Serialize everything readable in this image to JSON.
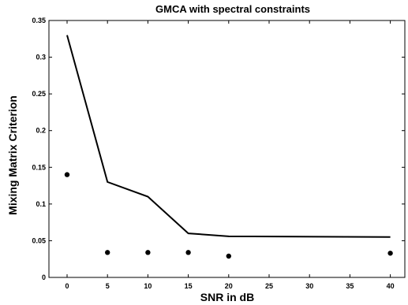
{
  "chart_data": {
    "type": "line",
    "title": "GMCA with spectral constraints",
    "xlabel": "SNR in dB",
    "ylabel": "Mixing Matrix Criterion",
    "categories": [
      "0",
      "5",
      "10",
      "15",
      "20",
      "25",
      "30",
      "35",
      "40"
    ],
    "ylim": [
      0,
      0.35
    ],
    "yticks": [
      "0",
      "0.05",
      "0.1",
      "0.15",
      "0.2",
      "0.25",
      "0.3",
      "0.35"
    ],
    "grid": false,
    "series": [
      {
        "style": "line",
        "color": "#000000",
        "points": [
          {
            "x": "0",
            "y": 0.33
          },
          {
            "x": "5",
            "y": 0.13
          },
          {
            "x": "10",
            "y": 0.11
          },
          {
            "x": "15",
            "y": 0.06
          },
          {
            "x": "20",
            "y": 0.056
          },
          {
            "x": "40",
            "y": 0.055
          }
        ]
      },
      {
        "style": "markers",
        "color": "#000000",
        "points": [
          {
            "x": "0",
            "y": 0.14
          },
          {
            "x": "5",
            "y": 0.034
          },
          {
            "x": "10",
            "y": 0.034
          },
          {
            "x": "15",
            "y": 0.034
          },
          {
            "x": "20",
            "y": 0.029
          },
          {
            "x": "40",
            "y": 0.033
          }
        ]
      }
    ]
  }
}
